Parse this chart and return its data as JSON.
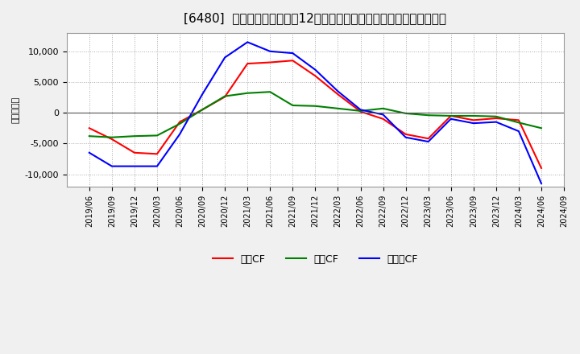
{
  "title": "[6480]  キャッシュフローの12か月移動合計の対前年同期増減額の推移",
  "ylabel": "（百万円）",
  "xlabels": [
    "2019/06",
    "2019/09",
    "2019/12",
    "2020/03",
    "2020/06",
    "2020/09",
    "2020/12",
    "2021/03",
    "2021/06",
    "2021/09",
    "2021/12",
    "2022/03",
    "2022/06",
    "2022/09",
    "2022/12",
    "2023/03",
    "2023/06",
    "2023/09",
    "2023/12",
    "2024/03",
    "2024/06",
    "2024/09"
  ],
  "operating_cf": [
    -2500,
    -4300,
    -6500,
    -6700,
    -1500,
    500,
    2600,
    8000,
    8200,
    8500,
    6000,
    3000,
    200,
    -1000,
    -3500,
    -4200,
    -500,
    -1200,
    -900,
    -1200,
    -9000,
    null
  ],
  "investing_cf": [
    -3800,
    -4000,
    -3800,
    -3700,
    -1800,
    500,
    2700,
    3200,
    3400,
    1200,
    1100,
    700,
    300,
    700,
    -100,
    -400,
    -500,
    -500,
    -600,
    -1600,
    -2500,
    null
  ],
  "free_cf": [
    -6500,
    -8700,
    -8700,
    -8700,
    -3500,
    3000,
    9000,
    11500,
    10000,
    9700,
    7000,
    3500,
    500,
    -300,
    -4000,
    -4700,
    -1000,
    -1700,
    -1500,
    -3000,
    -11500,
    null
  ],
  "ylim": [
    -12000,
    13000
  ],
  "yticks": [
    -10000,
    -5000,
    0,
    5000,
    10000
  ],
  "bg_color": "#f0f0f0",
  "plot_bg_color": "#ffffff",
  "operating_color": "#ff0000",
  "investing_color": "#008000",
  "free_color": "#0000ff",
  "legend_labels": [
    "営業CF",
    "投資CF",
    "フリーCF"
  ]
}
